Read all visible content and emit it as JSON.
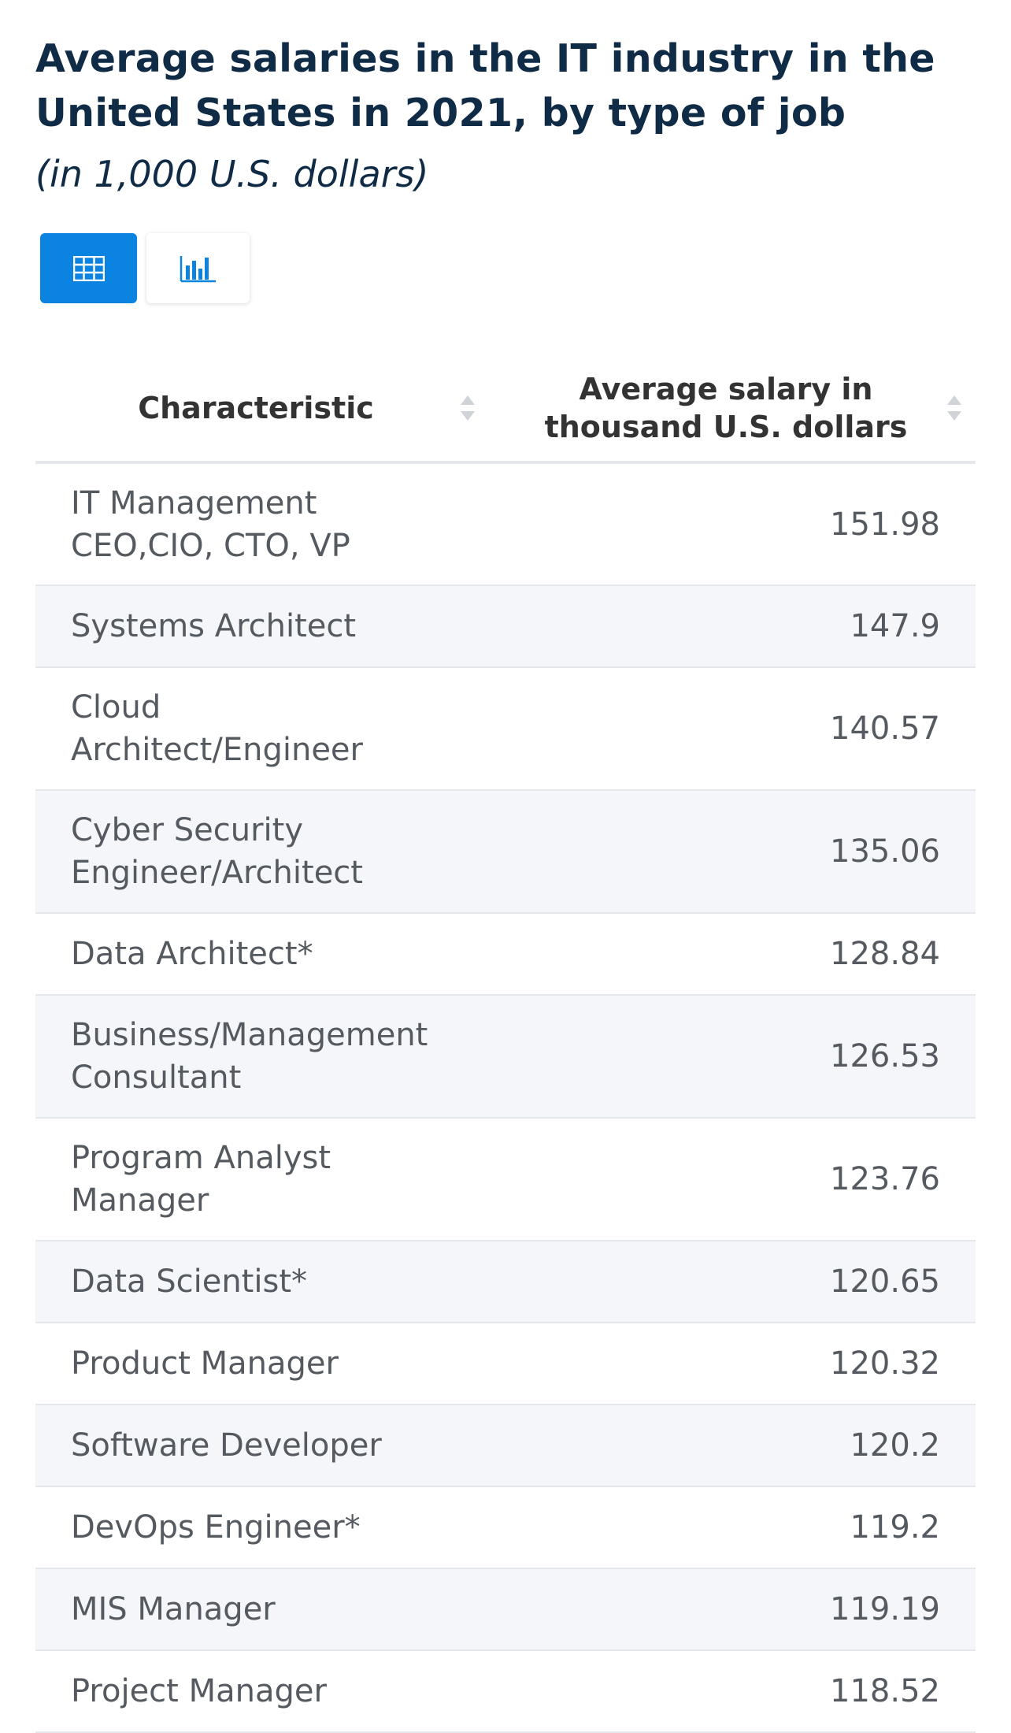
{
  "title": "Average salaries in the IT industry in the United States in 2021, by type of job",
  "subtitle": "(in 1,000 U.S. dollars)",
  "view_toggle": {
    "active": "table-view",
    "icons": [
      "table-icon",
      "bar-chart-icon"
    ]
  },
  "colors": {
    "accent": "#0a84e0",
    "title": "#0f2b46",
    "row_alt": "#f4f6fa"
  },
  "table": {
    "headers": [
      "Characteristic",
      "Average salary in thousand U.S. dollars"
    ]
  },
  "chart_data": {
    "type": "table",
    "title": "Average salaries in the IT industry in the United States in 2021, by type of job",
    "subtitle": "(in 1,000 U.S. dollars)",
    "columns": [
      "Characteristic",
      "Average salary in thousand U.S. dollars"
    ],
    "categories": [
      "IT Management CEO,CIO, CTO, VP",
      "Systems Architect",
      "Cloud Architect/Engineer",
      "Cyber Security Engineer/Architect",
      "Data Architect*",
      "Business/Management Consultant",
      "Program Analyst Manager",
      "Data Scientist*",
      "Product Manager",
      "Software Developer",
      "DevOps Engineer*",
      "MIS Manager",
      "Project Manager"
    ],
    "value_labels": [
      "151.98",
      "147.9",
      "140.57",
      "135.06",
      "128.84",
      "126.53",
      "123.76",
      "120.65",
      "120.32",
      "120.2",
      "119.2",
      "119.19",
      "118.52"
    ],
    "values": [
      151.98,
      147.9,
      140.57,
      135.06,
      128.84,
      126.53,
      123.76,
      120.65,
      120.32,
      120.2,
      119.2,
      119.19,
      118.52
    ]
  }
}
